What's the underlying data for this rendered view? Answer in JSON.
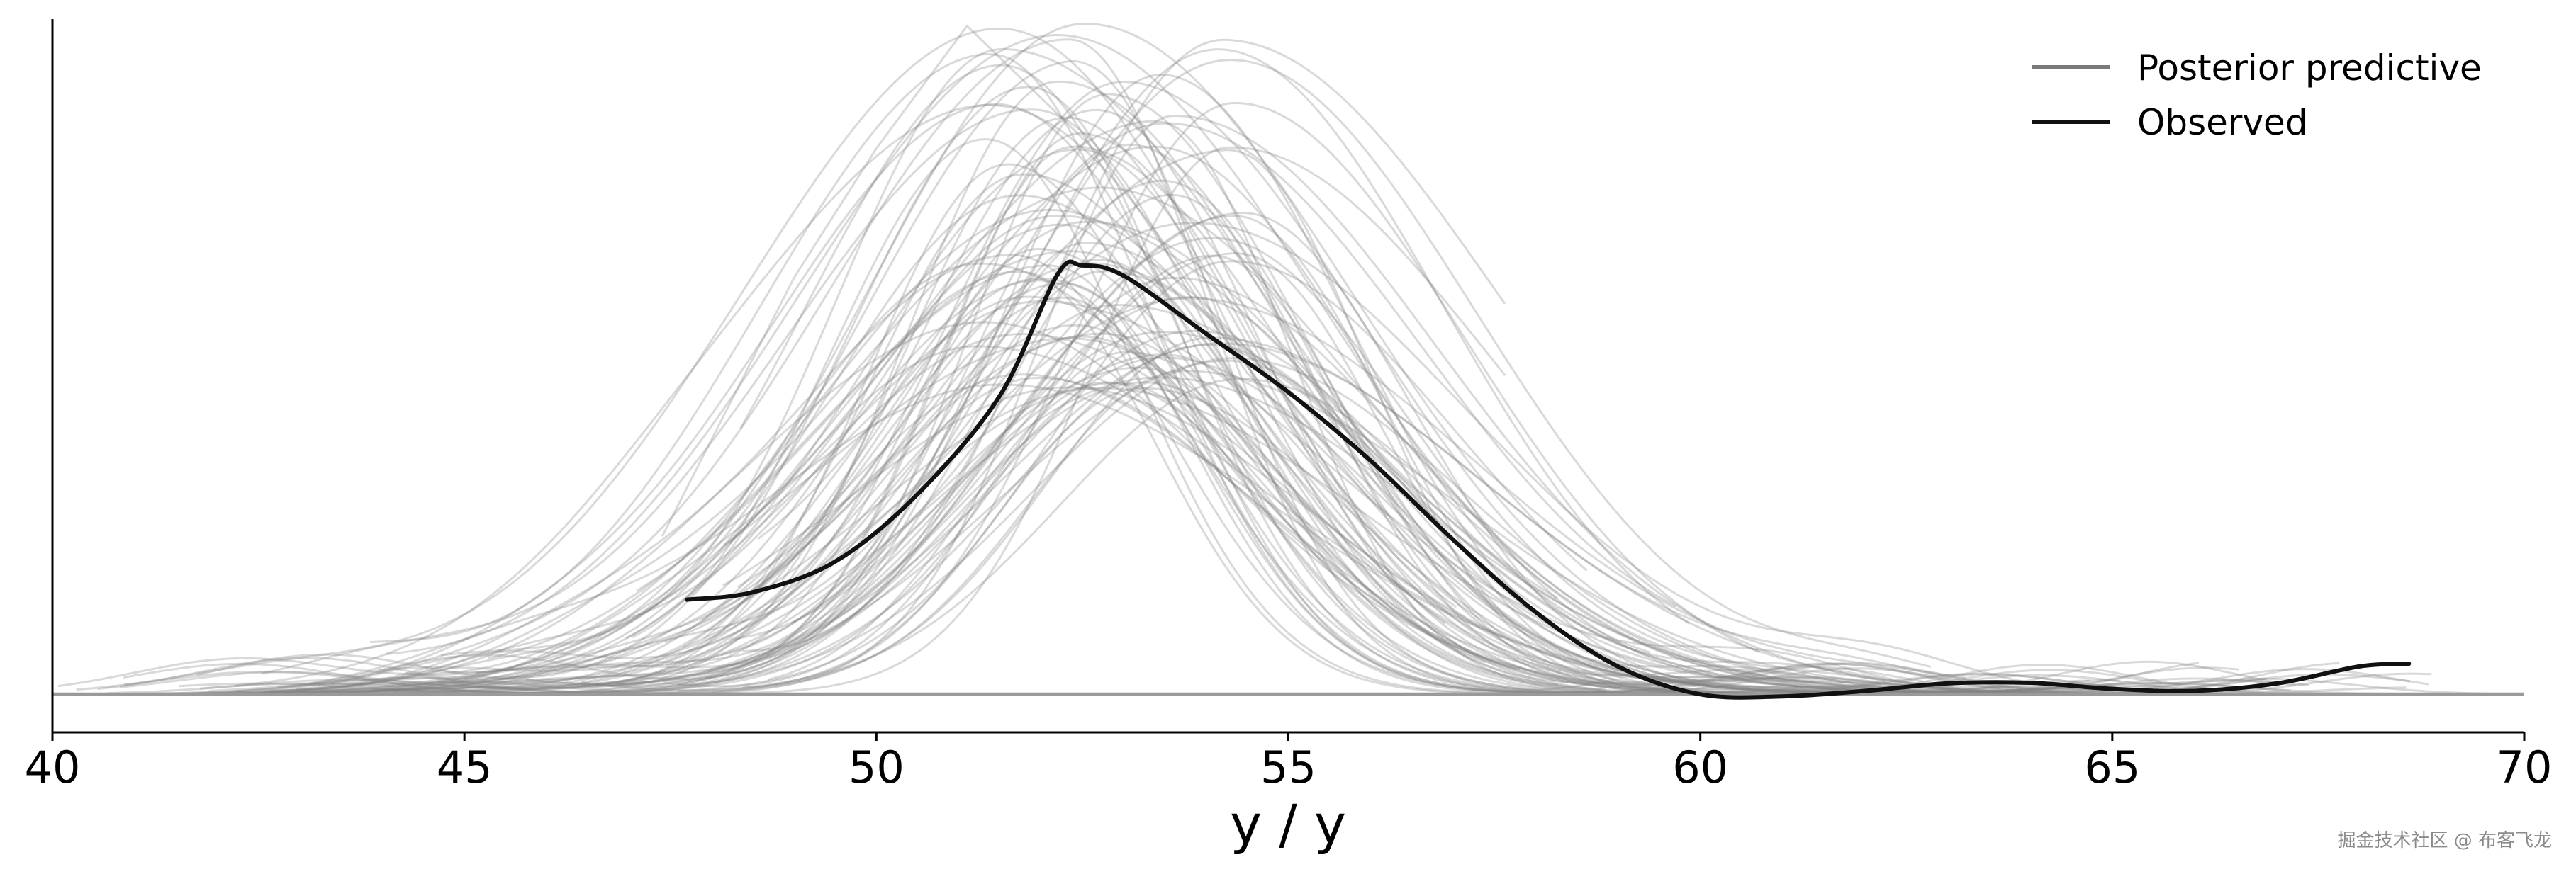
{
  "chart_data": {
    "type": "line",
    "title": "",
    "xlabel": "y / y",
    "ylabel": "",
    "xlim": [
      40,
      70
    ],
    "xticks": [
      40,
      45,
      50,
      55,
      60,
      65,
      70
    ],
    "ylim": [
      0,
      0.1
    ],
    "yaxis_ticks_shown": false,
    "grid": false,
    "legend_position": "top-right",
    "series": [
      {
        "name": "Posterior predictive",
        "color": "#808080",
        "opacity": 0.3,
        "kind": "kde-samples",
        "sample_count": 100,
        "peak_x_range": [
          51.2,
          54.5
        ],
        "peak_y_range": [
          0.045,
          0.1
        ],
        "example_curves": [
          {
            "x": [
              47.4,
              49,
              50,
              51.1,
              52.8,
              54.5,
              56.2
            ],
            "y": [
              0.024,
              0.062,
              0.081,
              0.099,
              0.079,
              0.048,
              0.027
            ]
          }
        ]
      },
      {
        "name": "Observed",
        "color": "#000000",
        "opacity": 1.0,
        "x": [
          47.7,
          48.5,
          49.5,
          50.5,
          51.5,
          52.2,
          52.5,
          53,
          54,
          55,
          56,
          57,
          58,
          59,
          60,
          61,
          62,
          63,
          64,
          65,
          66,
          67,
          68,
          68.6
        ],
        "y": [
          0.0147,
          0.0158,
          0.0203,
          0.0302,
          0.0447,
          0.0625,
          0.0638,
          0.0623,
          0.0538,
          0.0452,
          0.0351,
          0.0235,
          0.0129,
          0.0049,
          0.0008,
          0.0005,
          0.0013,
          0.0024,
          0.0025,
          0.0016,
          0.0013,
          0.0024,
          0.0049,
          0.0053
        ]
      }
    ]
  },
  "legend": {
    "posterior_label": "Posterior predictive",
    "observed_label": "Observed"
  },
  "watermark": "掘金技术社区 @ 布客飞龙"
}
